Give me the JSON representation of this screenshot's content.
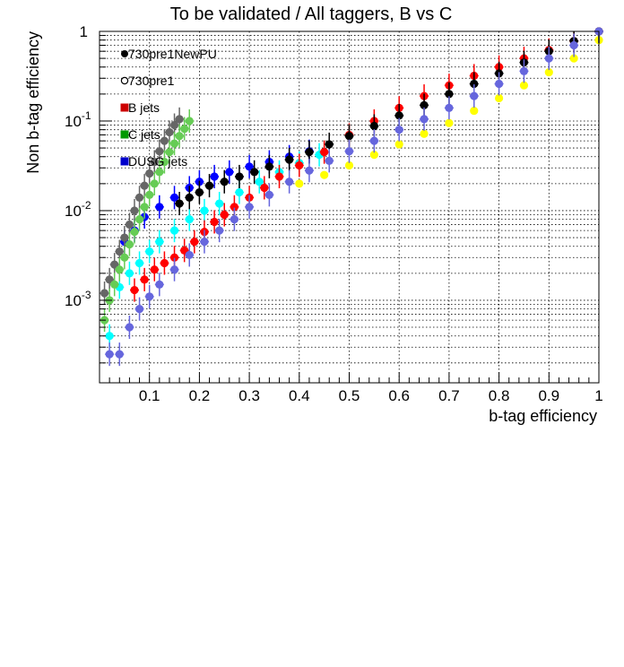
{
  "chart_data": {
    "type": "scatter",
    "title": "To be validated / All taggers, B vs C",
    "xlabel": "b-tag efficiency",
    "ylabel": "Non b-tag efficiency",
    "xlim": [
      0,
      1
    ],
    "ylim": [
      0.00012,
      1
    ],
    "y_scale": "log",
    "grid": true,
    "legend_position": "top-left",
    "x_ticks": [
      {
        "value": 0.1,
        "label": "0.1"
      },
      {
        "value": 0.2,
        "label": "0.2"
      },
      {
        "value": 0.3,
        "label": "0.3"
      },
      {
        "value": 0.4,
        "label": "0.4"
      },
      {
        "value": 0.5,
        "label": "0.5"
      },
      {
        "value": 0.6,
        "label": "0.6"
      },
      {
        "value": 0.7,
        "label": "0.7"
      },
      {
        "value": 0.8,
        "label": "0.8"
      },
      {
        "value": 0.9,
        "label": "0.9"
      },
      {
        "value": 1.0,
        "label": "1"
      }
    ],
    "y_ticks": [
      {
        "value": 0.001,
        "base": "10",
        "exp": "-3"
      },
      {
        "value": 0.01,
        "base": "10",
        "exp": "-2"
      },
      {
        "value": 0.1,
        "base": "10",
        "exp": "-1"
      },
      {
        "value": 1,
        "base": "1",
        "exp": ""
      }
    ],
    "legend": [
      {
        "label": "730pre1NewPU",
        "marker": "filled-circle",
        "color": "#000000"
      },
      {
        "label": "730pre1",
        "marker": "open-circle",
        "color": "#000000"
      },
      {
        "label": "B jets",
        "marker": "square",
        "color": "#cc0000"
      },
      {
        "label": "C jets",
        "marker": "square",
        "color": "#009900"
      },
      {
        "label": "DUSG jets",
        "marker": "square",
        "color": "#0000cc"
      }
    ],
    "series": [
      {
        "key": "dusg_newpu",
        "color": "#0000ff",
        "errors": true,
        "x": [
          0.05,
          0.07,
          0.09,
          0.12,
          0.15,
          0.18,
          0.2,
          0.23,
          0.26,
          0.3,
          0.34,
          0.38,
          0.42
        ],
        "y": [
          0.0045,
          0.006,
          0.0085,
          0.011,
          0.014,
          0.018,
          0.021,
          0.024,
          0.027,
          0.031,
          0.035,
          0.04,
          0.046
        ]
      },
      {
        "key": "dusg_pre1",
        "color": "#00ffff",
        "errors": true,
        "x": [
          0.02,
          0.04,
          0.06,
          0.08,
          0.1,
          0.12,
          0.15,
          0.18,
          0.21,
          0.24,
          0.28,
          0.32,
          0.36,
          0.4,
          0.44
        ],
        "y": [
          0.0004,
          0.0014,
          0.002,
          0.0026,
          0.0035,
          0.0045,
          0.006,
          0.008,
          0.01,
          0.012,
          0.016,
          0.021,
          0.027,
          0.034,
          0.042
        ]
      },
      {
        "key": "c_newpu",
        "color": "#666666",
        "errors": true,
        "x": [
          0.01,
          0.02,
          0.03,
          0.04,
          0.05,
          0.06,
          0.07,
          0.08,
          0.09,
          0.1,
          0.11,
          0.12,
          0.13,
          0.14,
          0.15,
          0.16
        ],
        "y": [
          0.0012,
          0.0017,
          0.0025,
          0.0035,
          0.005,
          0.007,
          0.01,
          0.014,
          0.019,
          0.026,
          0.035,
          0.046,
          0.06,
          0.075,
          0.09,
          0.105
        ]
      },
      {
        "key": "c_pre1",
        "color": "#66cc55",
        "errors": true,
        "x": [
          0.01,
          0.02,
          0.03,
          0.04,
          0.05,
          0.06,
          0.07,
          0.08,
          0.09,
          0.1,
          0.11,
          0.12,
          0.13,
          0.14,
          0.15,
          0.16,
          0.17,
          0.18
        ],
        "y": [
          0.0006,
          0.001,
          0.0015,
          0.0022,
          0.003,
          0.0042,
          0.0058,
          0.008,
          0.011,
          0.015,
          0.02,
          0.027,
          0.035,
          0.045,
          0.056,
          0.068,
          0.082,
          0.1
        ]
      },
      {
        "key": "b_newpu",
        "color": "#ff0000",
        "errors": true,
        "x": [
          0.07,
          0.09,
          0.11,
          0.13,
          0.15,
          0.17,
          0.19,
          0.21,
          0.23,
          0.25,
          0.27,
          0.3,
          0.33,
          0.36,
          0.4,
          0.45,
          0.5,
          0.55,
          0.6,
          0.65,
          0.7,
          0.75,
          0.8,
          0.85,
          0.9,
          0.95,
          1.0
        ],
        "y": [
          0.0013,
          0.0017,
          0.0022,
          0.0026,
          0.003,
          0.0036,
          0.0045,
          0.0058,
          0.0075,
          0.009,
          0.011,
          0.014,
          0.018,
          0.024,
          0.032,
          0.045,
          0.07,
          0.1,
          0.14,
          0.19,
          0.25,
          0.32,
          0.4,
          0.5,
          0.62,
          0.78,
          1.0
        ]
      },
      {
        "key": "b_pre1",
        "color": "#ffff00",
        "errors": false,
        "x": [
          0.4,
          0.45,
          0.5,
          0.55,
          0.6,
          0.65,
          0.7,
          0.75,
          0.8,
          0.85,
          0.9,
          0.95,
          1.0
        ],
        "y": [
          0.02,
          0.025,
          0.032,
          0.042,
          0.055,
          0.072,
          0.095,
          0.13,
          0.18,
          0.25,
          0.35,
          0.5,
          0.8
        ]
      },
      {
        "key": "black_newpu",
        "color": "#000000",
        "errors": true,
        "x": [
          0.16,
          0.18,
          0.2,
          0.22,
          0.25,
          0.28,
          0.31,
          0.34,
          0.38,
          0.42,
          0.46,
          0.5,
          0.55,
          0.6,
          0.65,
          0.7,
          0.75,
          0.8,
          0.85,
          0.9,
          0.95,
          1.0
        ],
        "y": [
          0.012,
          0.014,
          0.016,
          0.019,
          0.021,
          0.024,
          0.027,
          0.031,
          0.037,
          0.045,
          0.055,
          0.068,
          0.088,
          0.115,
          0.15,
          0.2,
          0.26,
          0.34,
          0.45,
          0.6,
          0.78,
          1.0
        ]
      },
      {
        "key": "purple_pre1",
        "color": "#6666dd",
        "errors": true,
        "x": [
          0.02,
          0.04,
          0.06,
          0.08,
          0.1,
          0.12,
          0.15,
          0.18,
          0.21,
          0.24,
          0.27,
          0.3,
          0.34,
          0.38,
          0.42,
          0.46,
          0.5,
          0.55,
          0.6,
          0.65,
          0.7,
          0.75,
          0.8,
          0.85,
          0.9,
          0.95,
          1.0
        ],
        "y": [
          0.00025,
          0.00025,
          0.0005,
          0.0008,
          0.0011,
          0.0015,
          0.0022,
          0.0032,
          0.0045,
          0.006,
          0.008,
          0.011,
          0.015,
          0.021,
          0.028,
          0.036,
          0.046,
          0.06,
          0.08,
          0.105,
          0.14,
          0.19,
          0.26,
          0.36,
          0.5,
          0.7,
          1.0
        ]
      }
    ]
  }
}
